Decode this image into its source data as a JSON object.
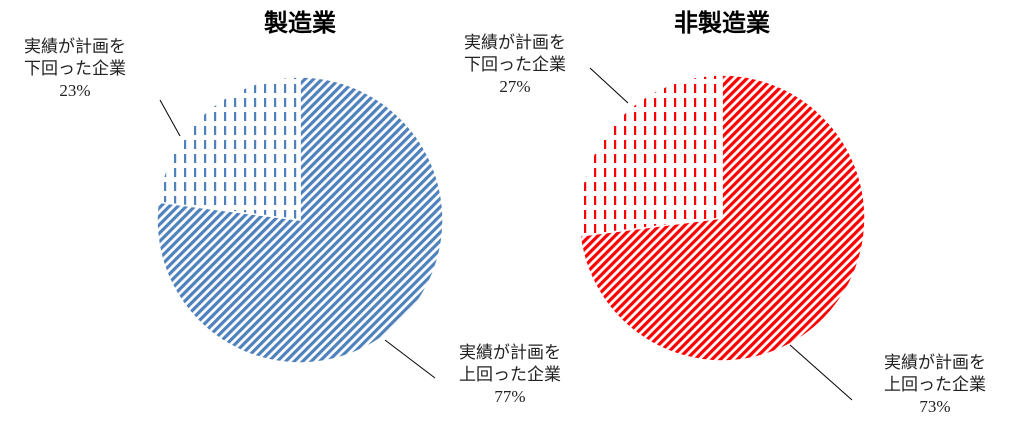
{
  "chart_data": [
    {
      "type": "pie",
      "title": "製造業",
      "categories": [
        "実績が計画を\n上回った企業",
        "実績が計画を\n下回った企業"
      ],
      "values": [
        77,
        23
      ],
      "value_labels": [
        "77%",
        "23%"
      ],
      "color": "#4f81bd"
    },
    {
      "type": "pie",
      "title": "非製造業",
      "categories": [
        "実績が計画を\n上回った企業",
        "実績が計画を\n下回った企業"
      ],
      "values": [
        73,
        27
      ],
      "value_labels": [
        "73%",
        "27%"
      ],
      "color": "#ff0000"
    }
  ]
}
